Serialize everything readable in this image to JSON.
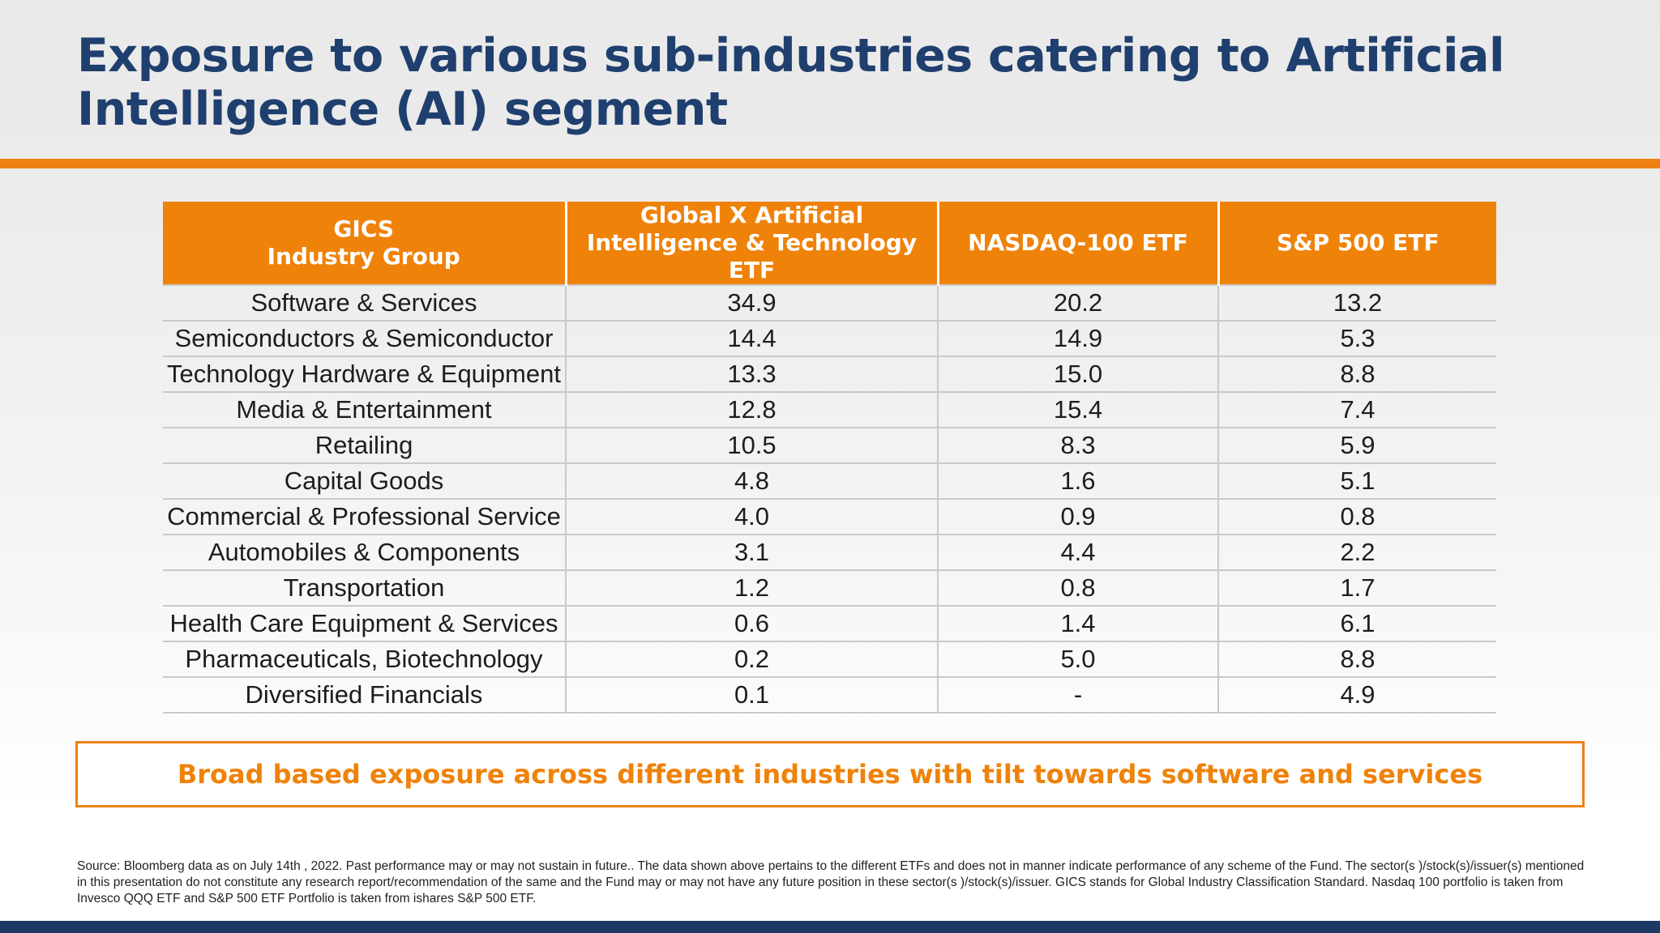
{
  "title": "Exposure to various sub-industries catering to Artificial Intelligence (AI) segment",
  "table": {
    "headers": [
      "GICS\nIndustry Group",
      "Global X Artificial\nIntelligence  & Technology ETF",
      "NASDAQ-100 ETF",
      "S&P 500 ETF"
    ],
    "rows": [
      [
        "Software & Services",
        "34.9",
        "20.2",
        "13.2"
      ],
      [
        "Semiconductors & Semiconductor",
        "14.4",
        "14.9",
        "5.3"
      ],
      [
        "Technology Hardware & Equipment",
        "13.3",
        "15.0",
        "8.8"
      ],
      [
        "Media & Entertainment",
        "12.8",
        "15.4",
        "7.4"
      ],
      [
        "Retailing",
        "10.5",
        "8.3",
        "5.9"
      ],
      [
        "Capital Goods",
        "4.8",
        "1.6",
        "5.1"
      ],
      [
        "Commercial & Professional Service",
        "4.0",
        "0.9",
        "0.8"
      ],
      [
        "Automobiles & Components",
        "3.1",
        "4.4",
        "2.2"
      ],
      [
        "Transportation",
        "1.2",
        "0.8",
        "1.7"
      ],
      [
        "Health Care Equipment & Services",
        "0.6",
        "1.4",
        "6.1"
      ],
      [
        "Pharmaceuticals, Biotechnology",
        "0.2",
        "5.0",
        "8.8"
      ],
      [
        "Diversified Financials",
        "0.1",
        "-",
        "4.9"
      ]
    ]
  },
  "callout": "Broad based exposure across different industries with tilt towards software and services",
  "source": "Source: Bloomberg data as on July 14th , 2022. Past performance may or may not sustain in future.. The data shown above pertains to the different ETFs and does not in manner indicate performance of any scheme of the Fund. The sector(s )/stock(s)/issuer(s) mentioned in this presentation do not constitute any research report/recommendation of the same and the Fund may or may not have any future position in these sector(s )/stock(s)/issuer. GICS stands for Global Industry Classification Standard. Nasdaq 100 portfolio is taken from Invesco QQQ ETF and S&P 500 ETF Portfolio is taken from ishares S&P 500 ETF.",
  "colors": {
    "accent_orange": "#ee8112",
    "title_navy": "#1f3f6e",
    "footer_navy": "#1c3a66"
  }
}
